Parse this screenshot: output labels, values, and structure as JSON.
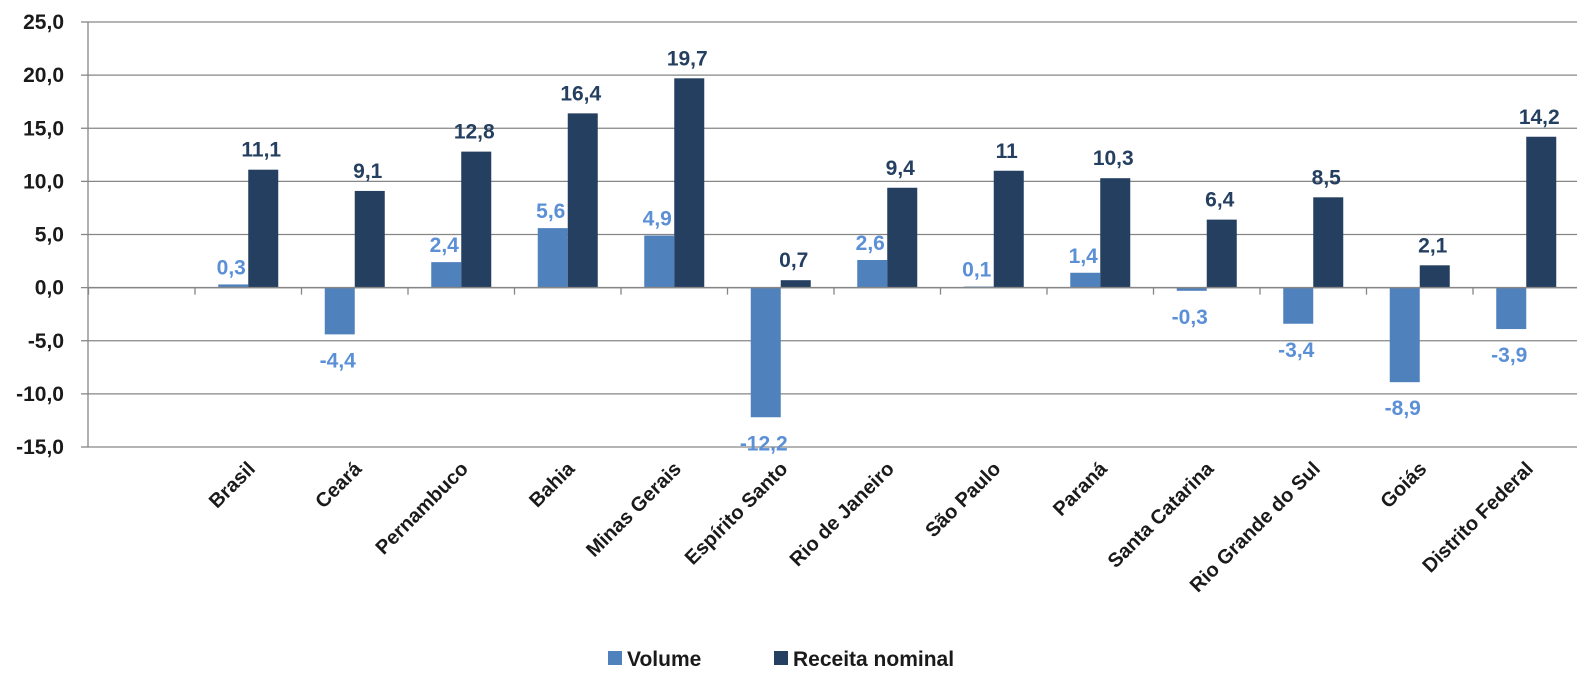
{
  "chart_data": {
    "type": "bar",
    "title": "",
    "xlabel": "",
    "ylabel": "",
    "ylim": [
      -15,
      25
    ],
    "yticks": [
      "25,0",
      "20,0",
      "15,0",
      "10,0",
      "5,0",
      "0,0",
      "-5,0",
      "-10,0",
      "-15,0"
    ],
    "ytick_values": [
      25,
      20,
      15,
      10,
      5,
      0,
      -5,
      -10,
      -15
    ],
    "grid": true,
    "legend_position": "bottom",
    "categories": [
      "Brasil",
      "Ceará",
      "Pernambuco",
      "Bahia",
      "Minas Gerais",
      "Espírito Santo",
      "Rio de Janeiro",
      "São Paulo",
      "Paraná",
      "Santa Catarina",
      "Rio Grande do Sul",
      "Goiás",
      "Distrito Federal"
    ],
    "series": [
      {
        "name": "Volume",
        "color": "#4f81bd",
        "label_color": "#5b8fd6",
        "values": [
          0.3,
          -4.4,
          2.4,
          5.6,
          4.9,
          -12.2,
          2.6,
          0.1,
          1.4,
          -0.3,
          -3.4,
          -8.9,
          -3.9
        ],
        "labels": [
          "0,3",
          "-4,4",
          "2,4",
          "5,6",
          "4,9",
          "-12,2",
          "2,6",
          "0,1",
          "1,4",
          "-0,3",
          "-3,4",
          "-8,9",
          "-3,9"
        ]
      },
      {
        "name": "Receita nominal",
        "color": "#243f60",
        "label_color": "#243f60",
        "values": [
          11.1,
          9.1,
          12.8,
          16.4,
          19.7,
          0.7,
          9.4,
          11,
          10.3,
          6.4,
          8.5,
          2.1,
          14.2
        ],
        "labels": [
          "11,1",
          "9,1",
          "12,8",
          "16,4",
          "19,7",
          "0,7",
          "9,4",
          "11",
          "10,3",
          "6,4",
          "8,5",
          "2,1",
          "14,2"
        ]
      }
    ]
  }
}
